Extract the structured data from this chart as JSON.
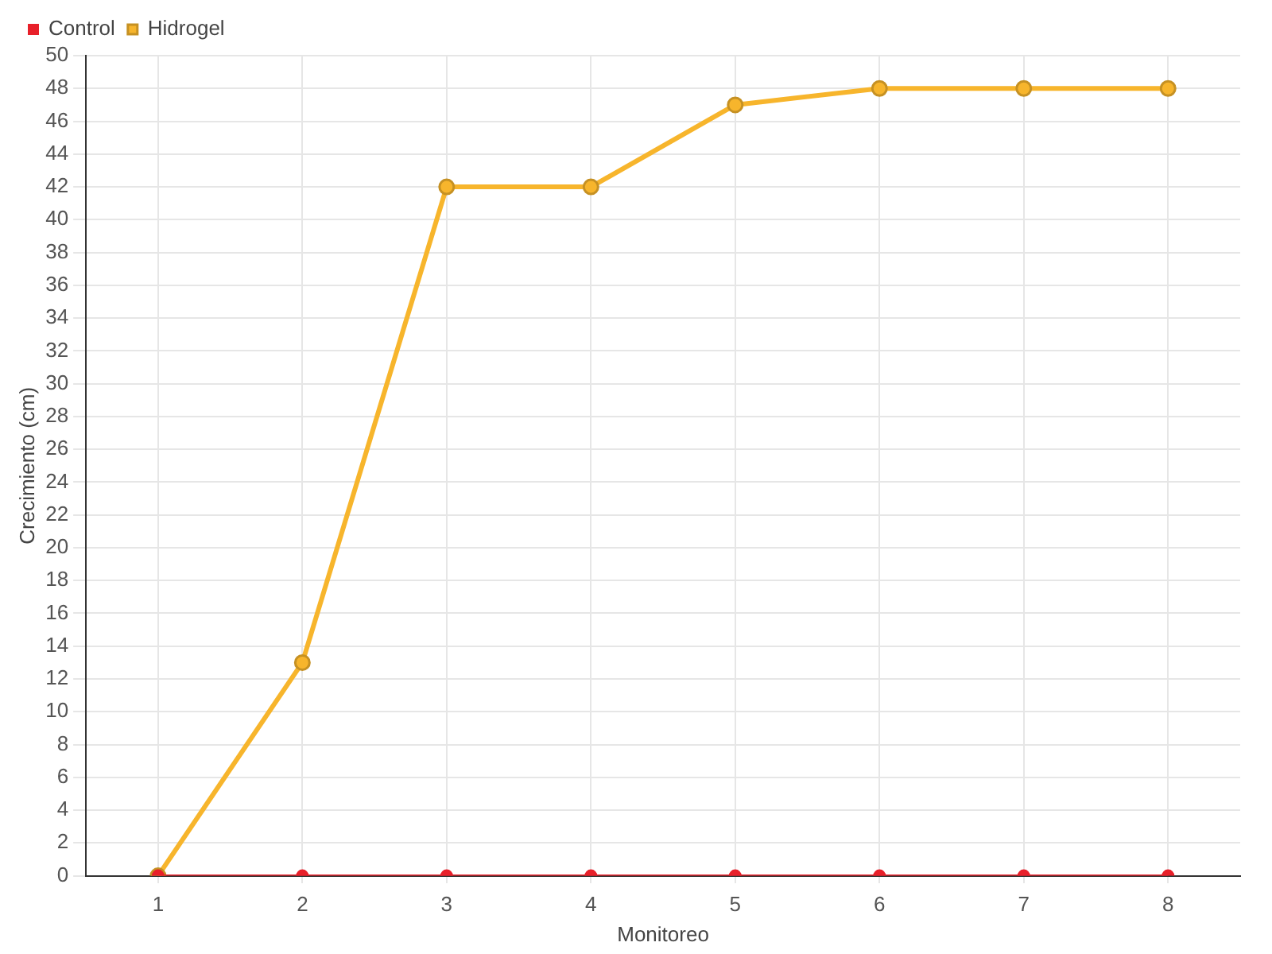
{
  "chart_data": {
    "type": "line",
    "xlabel": "Monitoreo",
    "ylabel": "Crecimiento (cm)",
    "categories": [
      "1",
      "2",
      "3",
      "4",
      "5",
      "6",
      "7",
      "8"
    ],
    "series": [
      {
        "name": "Hidrogel",
        "color": "#f7b52c",
        "values": [
          0,
          13,
          42,
          42,
          47,
          48,
          48,
          48
        ]
      },
      {
        "name": "Control",
        "color": "#e8202a",
        "values": [
          0,
          0,
          0,
          0,
          0,
          0,
          0,
          0
        ]
      }
    ],
    "ylim": [
      0,
      50
    ],
    "yticks": [
      0,
      2,
      4,
      6,
      8,
      10,
      12,
      14,
      16,
      18,
      20,
      22,
      24,
      26,
      28,
      30,
      32,
      34,
      36,
      38,
      40,
      42,
      44,
      46,
      48,
      50
    ],
    "grid": true,
    "legend": "top left",
    "marker": "circle",
    "line_style": "solid"
  }
}
